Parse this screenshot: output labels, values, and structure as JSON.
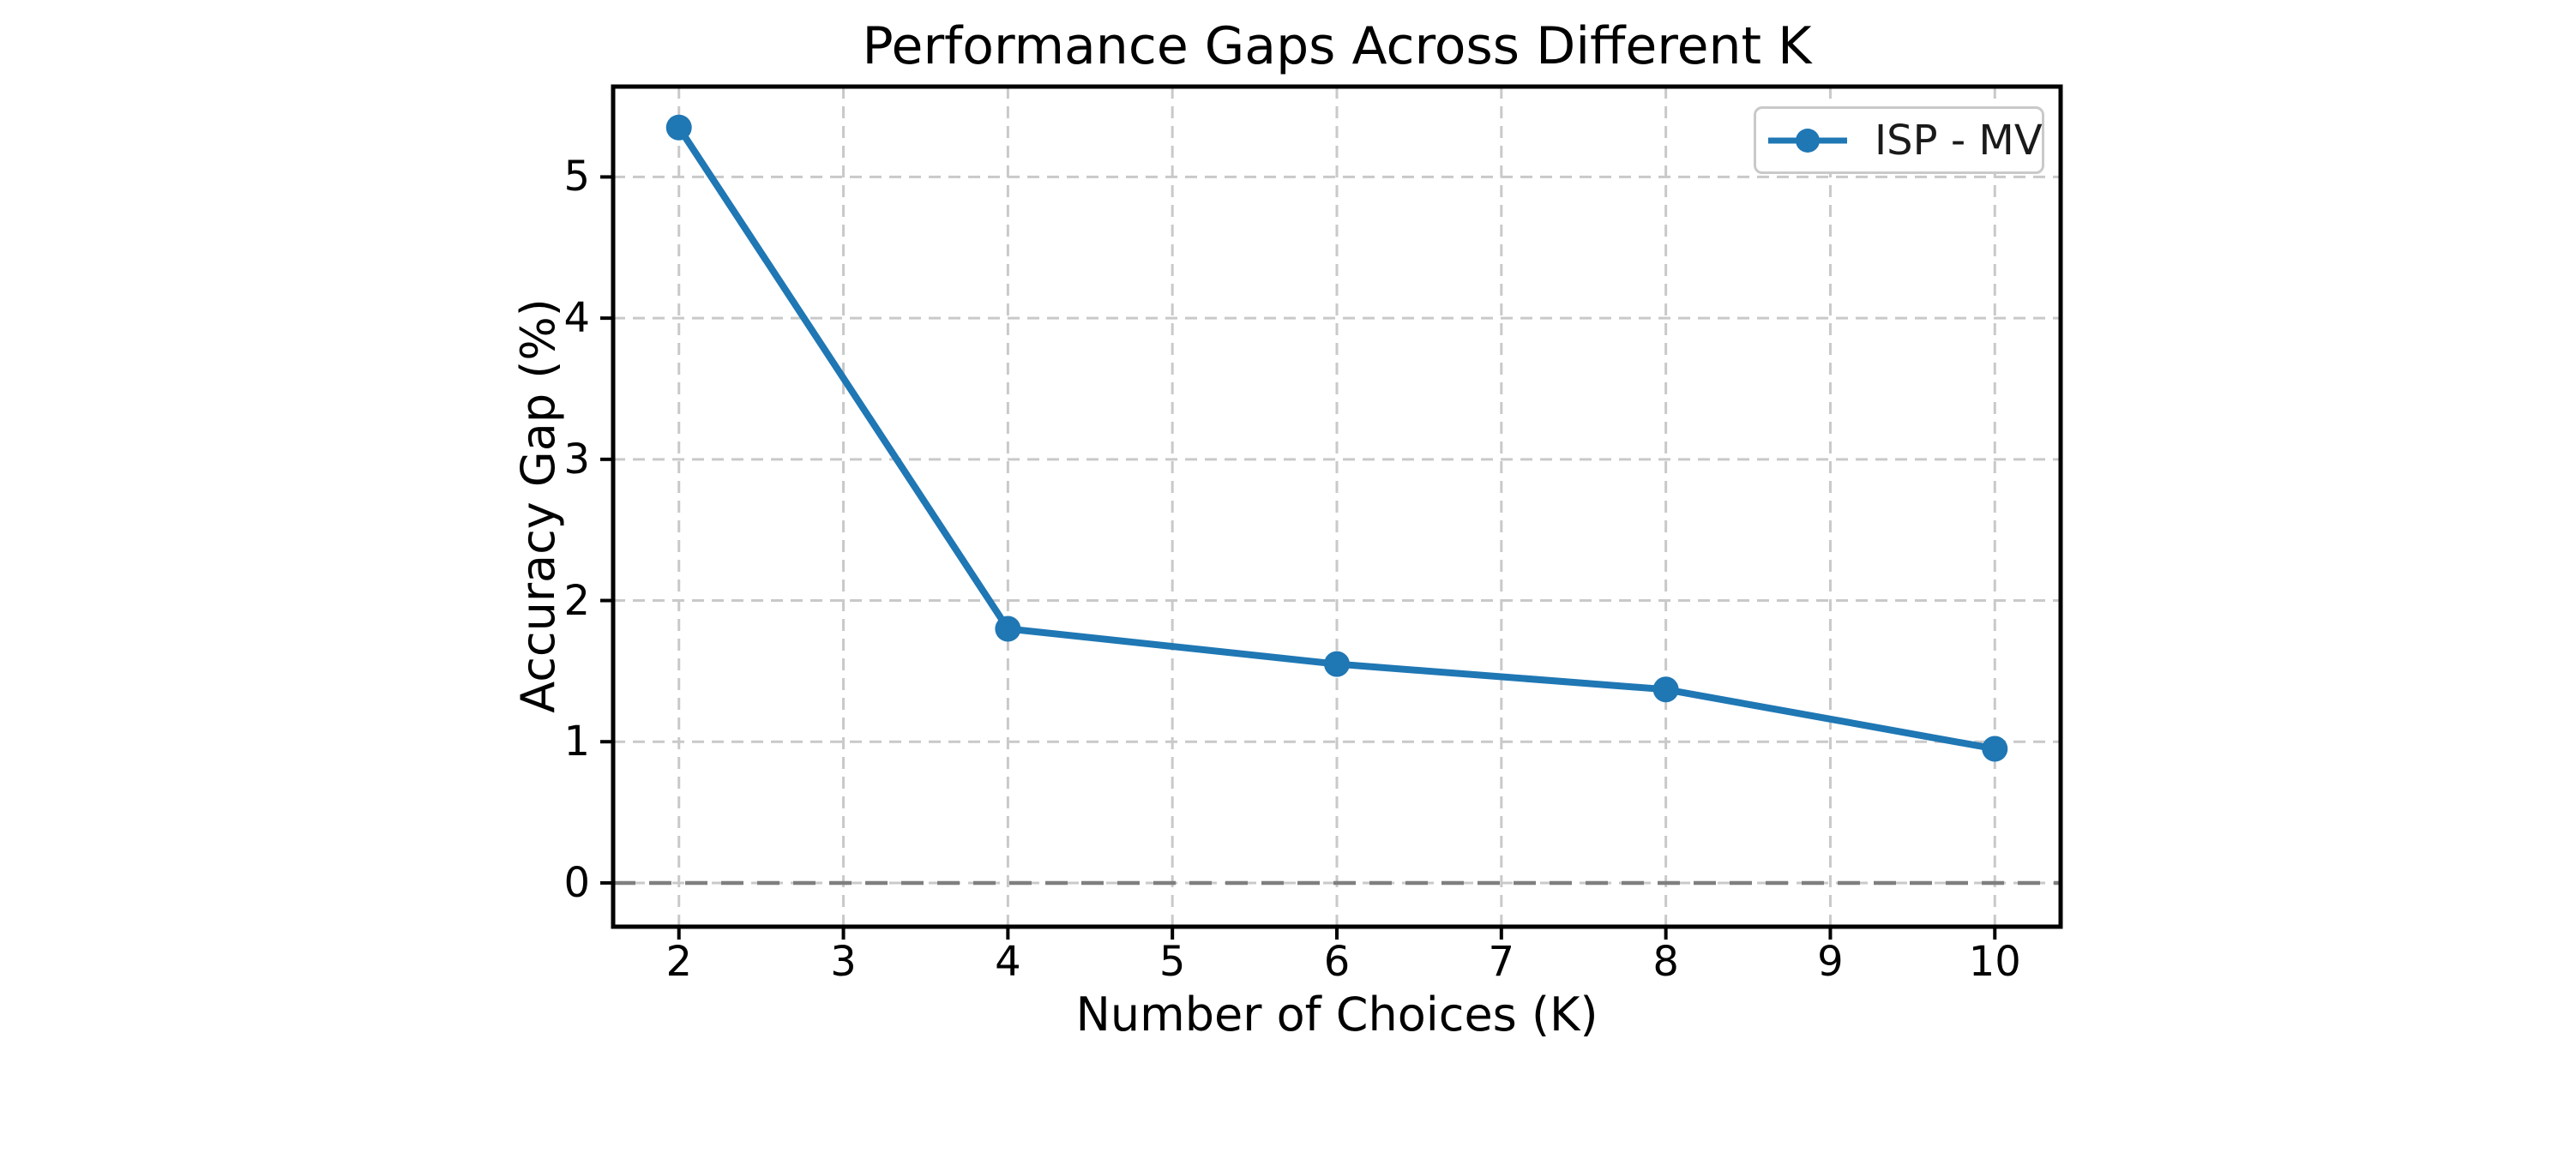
{
  "figure": {
    "background": "#ffffff"
  },
  "chart_data": {
    "type": "line",
    "title": "Performance Gaps Across Different K",
    "xlabel": "Number of Choices (K)",
    "ylabel": "Accuracy Gap (%)",
    "xlim": [
      1.6,
      10.4
    ],
    "ylim": [
      -0.31,
      5.64
    ],
    "xticks": [
      2,
      3,
      4,
      5,
      6,
      7,
      8,
      9,
      10
    ],
    "yticks": [
      0,
      1,
      2,
      3,
      4,
      5
    ],
    "grid": {
      "visible": true,
      "style": "dashed",
      "color": "#c9c9c9"
    },
    "zero_line": {
      "y": 0,
      "style": "dashed",
      "color": "#7f7f7f"
    },
    "legend": {
      "position": "upper-right",
      "border_color": "#c9c9c9"
    },
    "series": [
      {
        "name": "ISP - MV",
        "color": "#1f77b4",
        "marker": "circle",
        "x": [
          2,
          4,
          6,
          8,
          10
        ],
        "y": [
          5.35,
          1.8,
          1.55,
          1.37,
          0.95
        ]
      }
    ]
  }
}
